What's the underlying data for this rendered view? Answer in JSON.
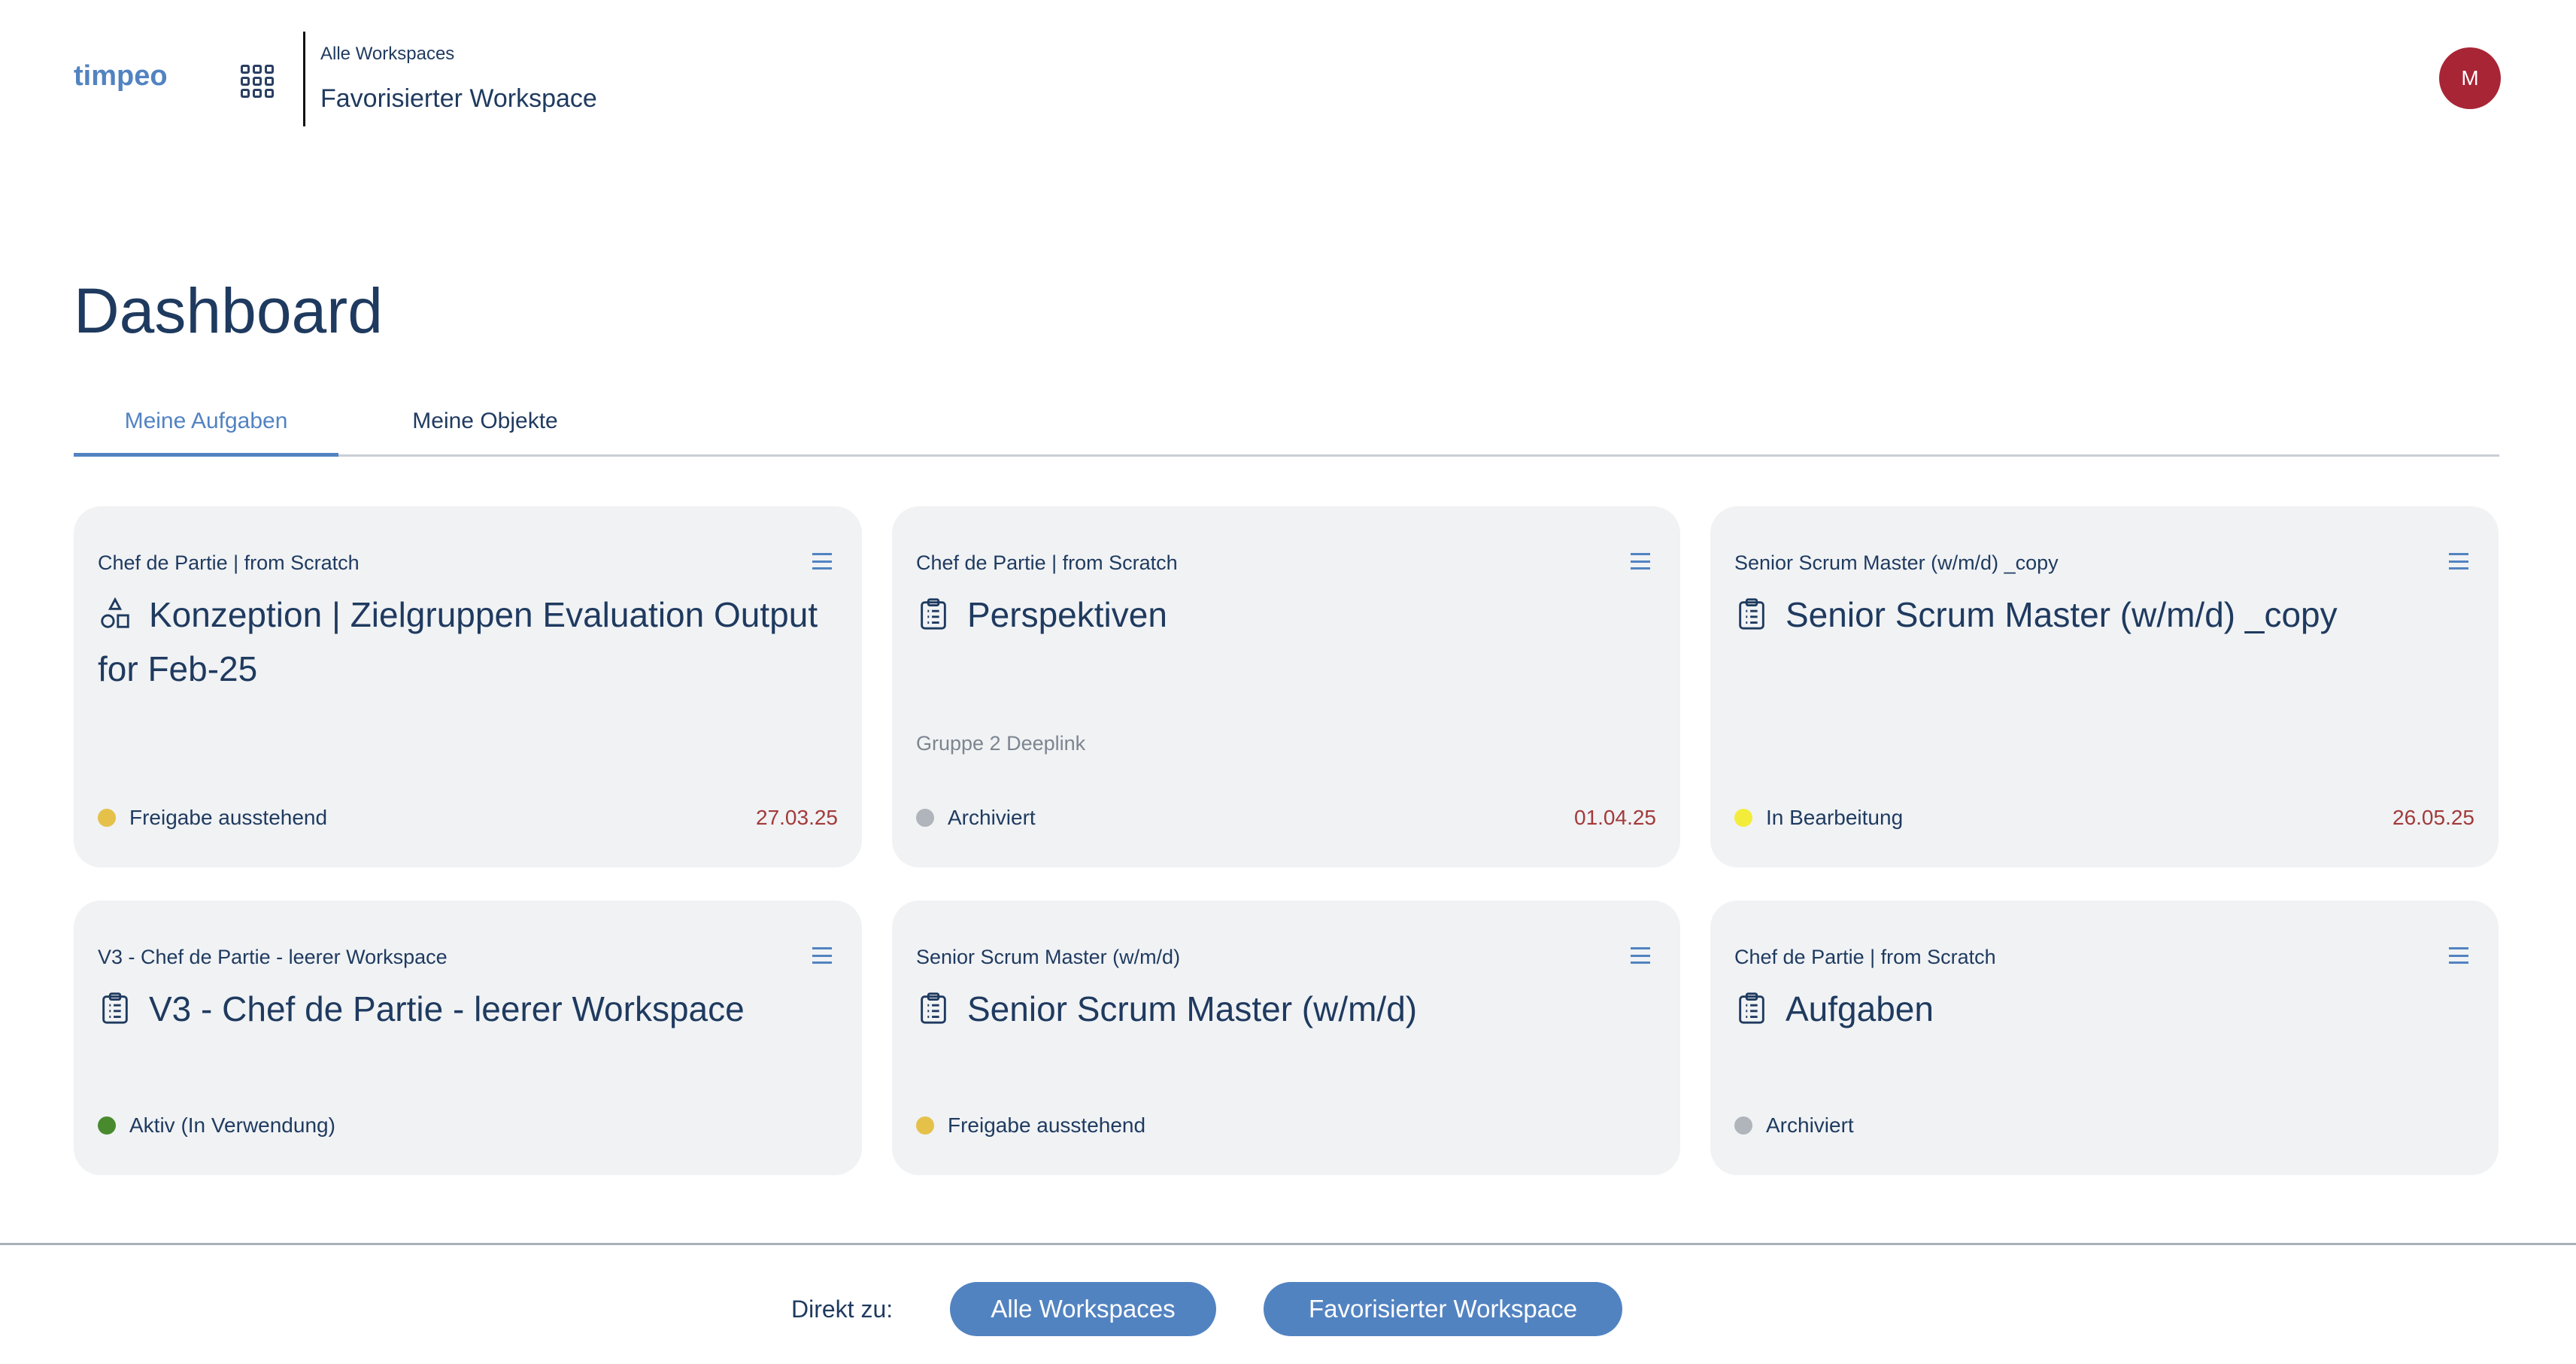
{
  "header": {
    "logo": "timpeo",
    "breadcrumb_parent": "Alle Workspaces",
    "breadcrumb_current": "Favorisierter Workspace",
    "avatar_initial": "M",
    "avatar_color": "#a82535"
  },
  "page_title": "Dashboard",
  "tabs": [
    {
      "label": "Meine Aufgaben",
      "active": true
    },
    {
      "label": "Meine Objekte",
      "active": false
    }
  ],
  "cards": [
    {
      "subtitle": "Chef de Partie | from Scratch",
      "icon": "shapes-icon",
      "title": "Konzeption | Zielgruppen Evaluation Output for Feb-25",
      "extra": "",
      "status": "Freigabe ausstehend",
      "status_color": "#e5c14a",
      "date": "27.03.25"
    },
    {
      "subtitle": "Chef de Partie | from Scratch",
      "icon": "clipboard-list-icon",
      "title": "Perspektiven",
      "extra": "Gruppe 2 Deeplink",
      "status": "Archiviert",
      "status_color": "#b0b5bc",
      "date": "01.04.25"
    },
    {
      "subtitle": "Senior Scrum Master (w/m/d) _copy",
      "icon": "clipboard-list-icon",
      "title": "Senior Scrum Master (w/m/d) _copy",
      "extra": "",
      "status": "In Bearbeitung",
      "status_color": "#f3ec3a",
      "date": "26.05.25"
    },
    {
      "subtitle": "V3 - Chef de Partie - leerer Workspace",
      "icon": "clipboard-list-icon",
      "title": "V3 - Chef de Partie - leerer Workspace",
      "extra": "",
      "status": "Aktiv (In Verwendung)",
      "status_color": "#4a8a2e",
      "date": ""
    },
    {
      "subtitle": "Senior Scrum Master (w/m/d)",
      "icon": "clipboard-list-icon",
      "title": "Senior Scrum Master (w/m/d)",
      "extra": "",
      "status": "Freigabe ausstehend",
      "status_color": "#e5c14a",
      "date": ""
    },
    {
      "subtitle": "Chef de Partie | from Scratch",
      "icon": "clipboard-list-icon",
      "title": "Aufgaben",
      "extra": "",
      "status": "Archiviert",
      "status_color": "#b0b5bc",
      "date": ""
    }
  ],
  "footer": {
    "label": "Direkt zu:",
    "buttons": [
      "Alle Workspaces",
      "Favorisierter Workspace"
    ]
  },
  "colors": {
    "accent": "#5283c1",
    "text": "#1f3a5f",
    "date": "#a23a3a"
  }
}
